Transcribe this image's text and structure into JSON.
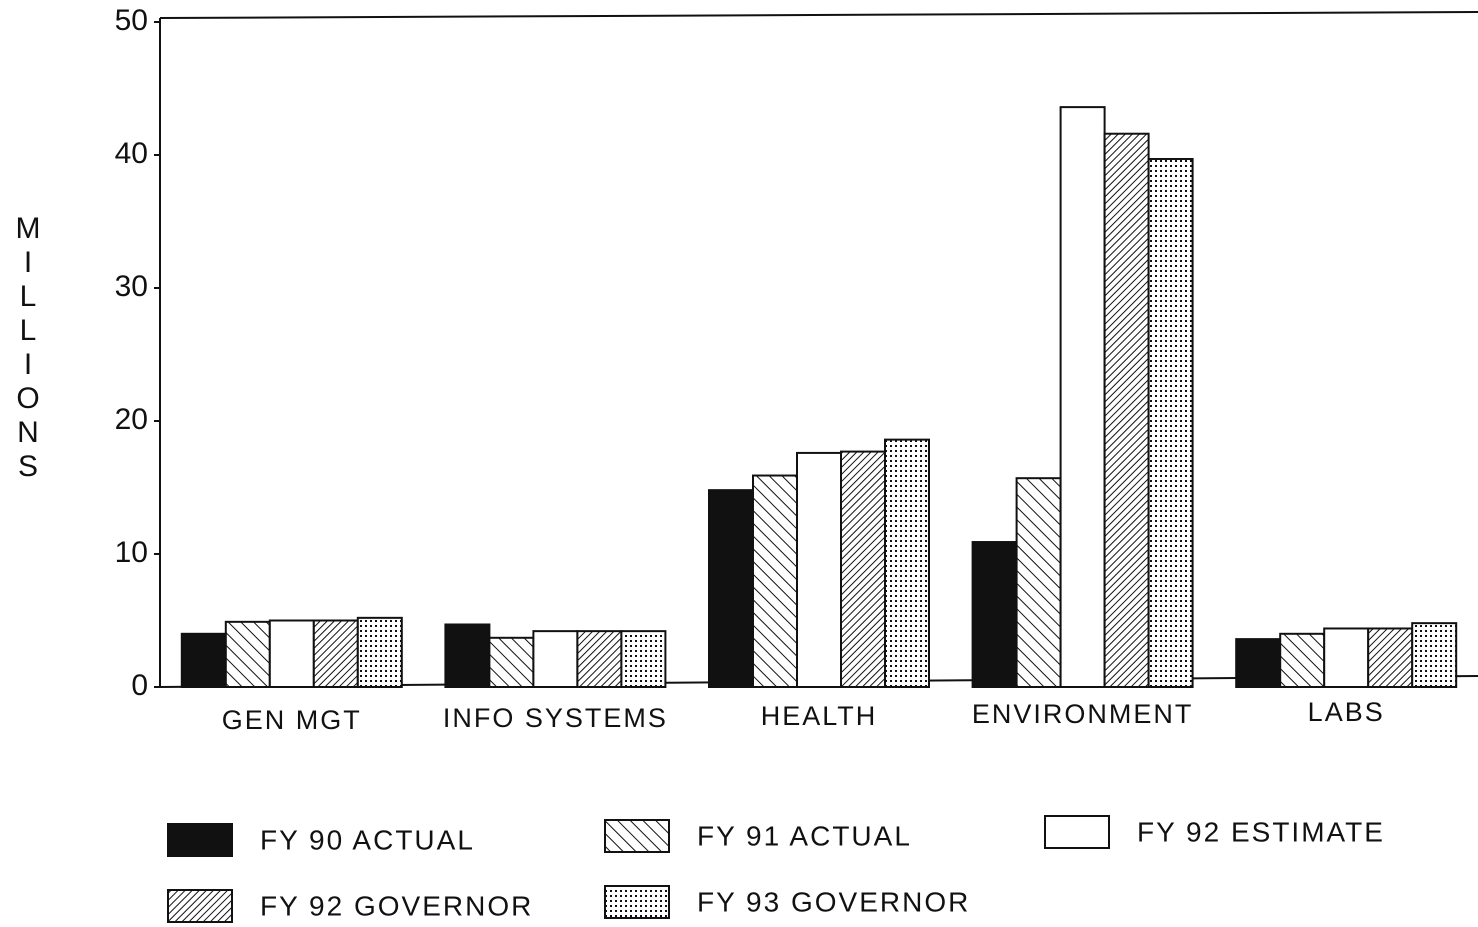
{
  "chart_data": {
    "type": "bar",
    "y_label": "MILLIONS",
    "categories": [
      "GEN MGT",
      "INFO SYSTEMS",
      "HEALTH",
      "ENVIRONMENT",
      "LABS"
    ],
    "series": [
      {
        "name": "FY 90 ACTUAL",
        "color": "#111111",
        "pattern": "solid",
        "values": [
          4.0,
          4.7,
          14.8,
          10.9,
          3.6
        ]
      },
      {
        "name": "FY 91 ACTUAL",
        "color": "#111111",
        "pattern": "hatch",
        "values": [
          4.9,
          3.7,
          15.9,
          15.7,
          4.0
        ]
      },
      {
        "name": "FY 92 ESTIMATE",
        "color": "#111111",
        "pattern": "none",
        "values": [
          5.0,
          4.2,
          17.6,
          43.6,
          4.4
        ]
      },
      {
        "name": "FY 92 GOVERNOR",
        "color": "#111111",
        "pattern": "dense-hatch",
        "values": [
          5.0,
          4.2,
          17.7,
          41.6,
          4.4
        ]
      },
      {
        "name": "FY 93 GOVERNOR",
        "color": "#111111",
        "pattern": "dots",
        "values": [
          5.2,
          4.2,
          18.6,
          39.7,
          4.8
        ]
      }
    ],
    "ylim": [
      0,
      50
    ],
    "yticks": [
      0,
      10,
      20,
      30,
      40,
      50
    ],
    "grid": false
  }
}
